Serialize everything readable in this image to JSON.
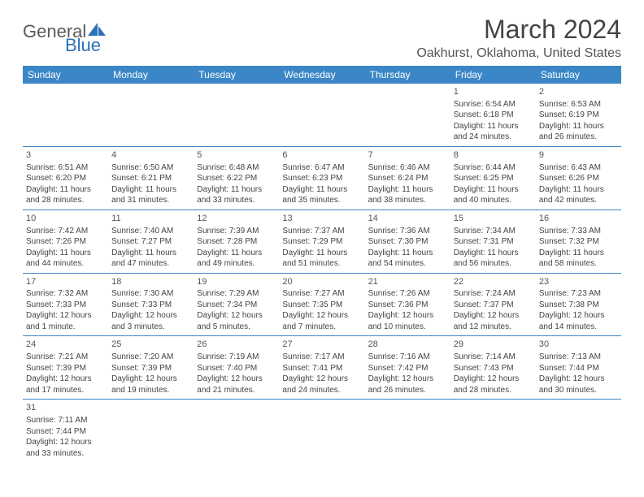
{
  "logo": {
    "word1": "General",
    "word2": "Blue"
  },
  "title": "March 2024",
  "location": "Oakhurst, Oklahoma, United States",
  "colors": {
    "header_bg": "#3b86c6",
    "header_text": "#ffffff",
    "accent": "#2b70b8",
    "text": "#444444",
    "border": "#3b86c6"
  },
  "weekdays": [
    "Sunday",
    "Monday",
    "Tuesday",
    "Wednesday",
    "Thursday",
    "Friday",
    "Saturday"
  ],
  "weeks": [
    [
      null,
      null,
      null,
      null,
      null,
      {
        "day": "1",
        "sunrise": "Sunrise: 6:54 AM",
        "sunset": "Sunset: 6:18 PM",
        "daylight1": "Daylight: 11 hours",
        "daylight2": "and 24 minutes."
      },
      {
        "day": "2",
        "sunrise": "Sunrise: 6:53 AM",
        "sunset": "Sunset: 6:19 PM",
        "daylight1": "Daylight: 11 hours",
        "daylight2": "and 26 minutes."
      }
    ],
    [
      {
        "day": "3",
        "sunrise": "Sunrise: 6:51 AM",
        "sunset": "Sunset: 6:20 PM",
        "daylight1": "Daylight: 11 hours",
        "daylight2": "and 28 minutes."
      },
      {
        "day": "4",
        "sunrise": "Sunrise: 6:50 AM",
        "sunset": "Sunset: 6:21 PM",
        "daylight1": "Daylight: 11 hours",
        "daylight2": "and 31 minutes."
      },
      {
        "day": "5",
        "sunrise": "Sunrise: 6:48 AM",
        "sunset": "Sunset: 6:22 PM",
        "daylight1": "Daylight: 11 hours",
        "daylight2": "and 33 minutes."
      },
      {
        "day": "6",
        "sunrise": "Sunrise: 6:47 AM",
        "sunset": "Sunset: 6:23 PM",
        "daylight1": "Daylight: 11 hours",
        "daylight2": "and 35 minutes."
      },
      {
        "day": "7",
        "sunrise": "Sunrise: 6:46 AM",
        "sunset": "Sunset: 6:24 PM",
        "daylight1": "Daylight: 11 hours",
        "daylight2": "and 38 minutes."
      },
      {
        "day": "8",
        "sunrise": "Sunrise: 6:44 AM",
        "sunset": "Sunset: 6:25 PM",
        "daylight1": "Daylight: 11 hours",
        "daylight2": "and 40 minutes."
      },
      {
        "day": "9",
        "sunrise": "Sunrise: 6:43 AM",
        "sunset": "Sunset: 6:26 PM",
        "daylight1": "Daylight: 11 hours",
        "daylight2": "and 42 minutes."
      }
    ],
    [
      {
        "day": "10",
        "sunrise": "Sunrise: 7:42 AM",
        "sunset": "Sunset: 7:26 PM",
        "daylight1": "Daylight: 11 hours",
        "daylight2": "and 44 minutes."
      },
      {
        "day": "11",
        "sunrise": "Sunrise: 7:40 AM",
        "sunset": "Sunset: 7:27 PM",
        "daylight1": "Daylight: 11 hours",
        "daylight2": "and 47 minutes."
      },
      {
        "day": "12",
        "sunrise": "Sunrise: 7:39 AM",
        "sunset": "Sunset: 7:28 PM",
        "daylight1": "Daylight: 11 hours",
        "daylight2": "and 49 minutes."
      },
      {
        "day": "13",
        "sunrise": "Sunrise: 7:37 AM",
        "sunset": "Sunset: 7:29 PM",
        "daylight1": "Daylight: 11 hours",
        "daylight2": "and 51 minutes."
      },
      {
        "day": "14",
        "sunrise": "Sunrise: 7:36 AM",
        "sunset": "Sunset: 7:30 PM",
        "daylight1": "Daylight: 11 hours",
        "daylight2": "and 54 minutes."
      },
      {
        "day": "15",
        "sunrise": "Sunrise: 7:34 AM",
        "sunset": "Sunset: 7:31 PM",
        "daylight1": "Daylight: 11 hours",
        "daylight2": "and 56 minutes."
      },
      {
        "day": "16",
        "sunrise": "Sunrise: 7:33 AM",
        "sunset": "Sunset: 7:32 PM",
        "daylight1": "Daylight: 11 hours",
        "daylight2": "and 58 minutes."
      }
    ],
    [
      {
        "day": "17",
        "sunrise": "Sunrise: 7:32 AM",
        "sunset": "Sunset: 7:33 PM",
        "daylight1": "Daylight: 12 hours",
        "daylight2": "and 1 minute."
      },
      {
        "day": "18",
        "sunrise": "Sunrise: 7:30 AM",
        "sunset": "Sunset: 7:33 PM",
        "daylight1": "Daylight: 12 hours",
        "daylight2": "and 3 minutes."
      },
      {
        "day": "19",
        "sunrise": "Sunrise: 7:29 AM",
        "sunset": "Sunset: 7:34 PM",
        "daylight1": "Daylight: 12 hours",
        "daylight2": "and 5 minutes."
      },
      {
        "day": "20",
        "sunrise": "Sunrise: 7:27 AM",
        "sunset": "Sunset: 7:35 PM",
        "daylight1": "Daylight: 12 hours",
        "daylight2": "and 7 minutes."
      },
      {
        "day": "21",
        "sunrise": "Sunrise: 7:26 AM",
        "sunset": "Sunset: 7:36 PM",
        "daylight1": "Daylight: 12 hours",
        "daylight2": "and 10 minutes."
      },
      {
        "day": "22",
        "sunrise": "Sunrise: 7:24 AM",
        "sunset": "Sunset: 7:37 PM",
        "daylight1": "Daylight: 12 hours",
        "daylight2": "and 12 minutes."
      },
      {
        "day": "23",
        "sunrise": "Sunrise: 7:23 AM",
        "sunset": "Sunset: 7:38 PM",
        "daylight1": "Daylight: 12 hours",
        "daylight2": "and 14 minutes."
      }
    ],
    [
      {
        "day": "24",
        "sunrise": "Sunrise: 7:21 AM",
        "sunset": "Sunset: 7:39 PM",
        "daylight1": "Daylight: 12 hours",
        "daylight2": "and 17 minutes."
      },
      {
        "day": "25",
        "sunrise": "Sunrise: 7:20 AM",
        "sunset": "Sunset: 7:39 PM",
        "daylight1": "Daylight: 12 hours",
        "daylight2": "and 19 minutes."
      },
      {
        "day": "26",
        "sunrise": "Sunrise: 7:19 AM",
        "sunset": "Sunset: 7:40 PM",
        "daylight1": "Daylight: 12 hours",
        "daylight2": "and 21 minutes."
      },
      {
        "day": "27",
        "sunrise": "Sunrise: 7:17 AM",
        "sunset": "Sunset: 7:41 PM",
        "daylight1": "Daylight: 12 hours",
        "daylight2": "and 24 minutes."
      },
      {
        "day": "28",
        "sunrise": "Sunrise: 7:16 AM",
        "sunset": "Sunset: 7:42 PM",
        "daylight1": "Daylight: 12 hours",
        "daylight2": "and 26 minutes."
      },
      {
        "day": "29",
        "sunrise": "Sunrise: 7:14 AM",
        "sunset": "Sunset: 7:43 PM",
        "daylight1": "Daylight: 12 hours",
        "daylight2": "and 28 minutes."
      },
      {
        "day": "30",
        "sunrise": "Sunrise: 7:13 AM",
        "sunset": "Sunset: 7:44 PM",
        "daylight1": "Daylight: 12 hours",
        "daylight2": "and 30 minutes."
      }
    ],
    [
      {
        "day": "31",
        "sunrise": "Sunrise: 7:11 AM",
        "sunset": "Sunset: 7:44 PM",
        "daylight1": "Daylight: 12 hours",
        "daylight2": "and 33 minutes."
      },
      null,
      null,
      null,
      null,
      null,
      null
    ]
  ]
}
